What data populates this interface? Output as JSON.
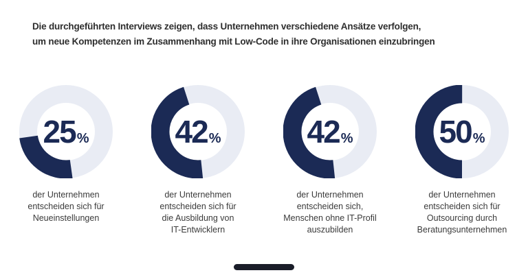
{
  "title": {
    "line1": "Die durchgeführten Interviews zeigen, dass Unternehmen verschiedene Ansätze verfolgen,",
    "line2": "um neue Kompetenzen im Zusammenhang mit Low-Code in ihre Organisationen einzubringen"
  },
  "colors": {
    "navy": "#1b2a55",
    "ring": "#e9ecf4",
    "title_text": "#2e2e2e",
    "caption_text": "#3a3a3a",
    "footer_bar": "#1a1d29",
    "background": "#ffffff"
  },
  "chart_data": {
    "type": "pie",
    "subtype": "donut-multiples",
    "title": "Die durchgeführten Interviews zeigen, dass Unternehmen verschiedene Ansätze verfolgen, um neue Kompetenzen im Zusammenhang mit Low-Code in ihre Organisationen einzubringen",
    "unit": "%",
    "legend_position": "none",
    "donuts": [
      {
        "value": 25,
        "display_value": "25",
        "percent_sign": "%",
        "label": "der Unternehmen entscheiden sich für Neueinstellungen",
        "label_lines": [
          "der Unternehmen",
          "entscheiden sich für",
          "Neueinstellungen"
        ],
        "arc_start_deg": 172,
        "arc_sweep_deg": 90
      },
      {
        "value": 42,
        "display_value": "42",
        "percent_sign": "%",
        "label": "der Unternehmen entscheiden sich für die Ausbildung von IT-Entwicklern",
        "label_lines": [
          "der Unternehmen",
          "entscheiden sich für",
          "die Ausbildung von",
          "IT-Entwicklern"
        ],
        "arc_start_deg": 174,
        "arc_sweep_deg": 168
      },
      {
        "value": 42,
        "display_value": "42",
        "percent_sign": "%",
        "label": "der Unternehmen entscheiden sich, Menschen ohne IT-Profil auszubilden",
        "label_lines": [
          "der Unternehmen",
          "entscheiden sich,",
          "Menschen ohne IT-Profil",
          "auszubilden"
        ],
        "arc_start_deg": 174,
        "arc_sweep_deg": 168
      },
      {
        "value": 50,
        "display_value": "50",
        "percent_sign": "%",
        "label": "der Unternehmen entscheiden sich für Outsourcing durch Beratungsunternehmen",
        "label_lines": [
          "der Unternehmen",
          "entscheiden sich für",
          "Outsourcing durch",
          "Beratungsunternehmen"
        ],
        "arc_start_deg": 180,
        "arc_sweep_deg": 180
      }
    ]
  }
}
